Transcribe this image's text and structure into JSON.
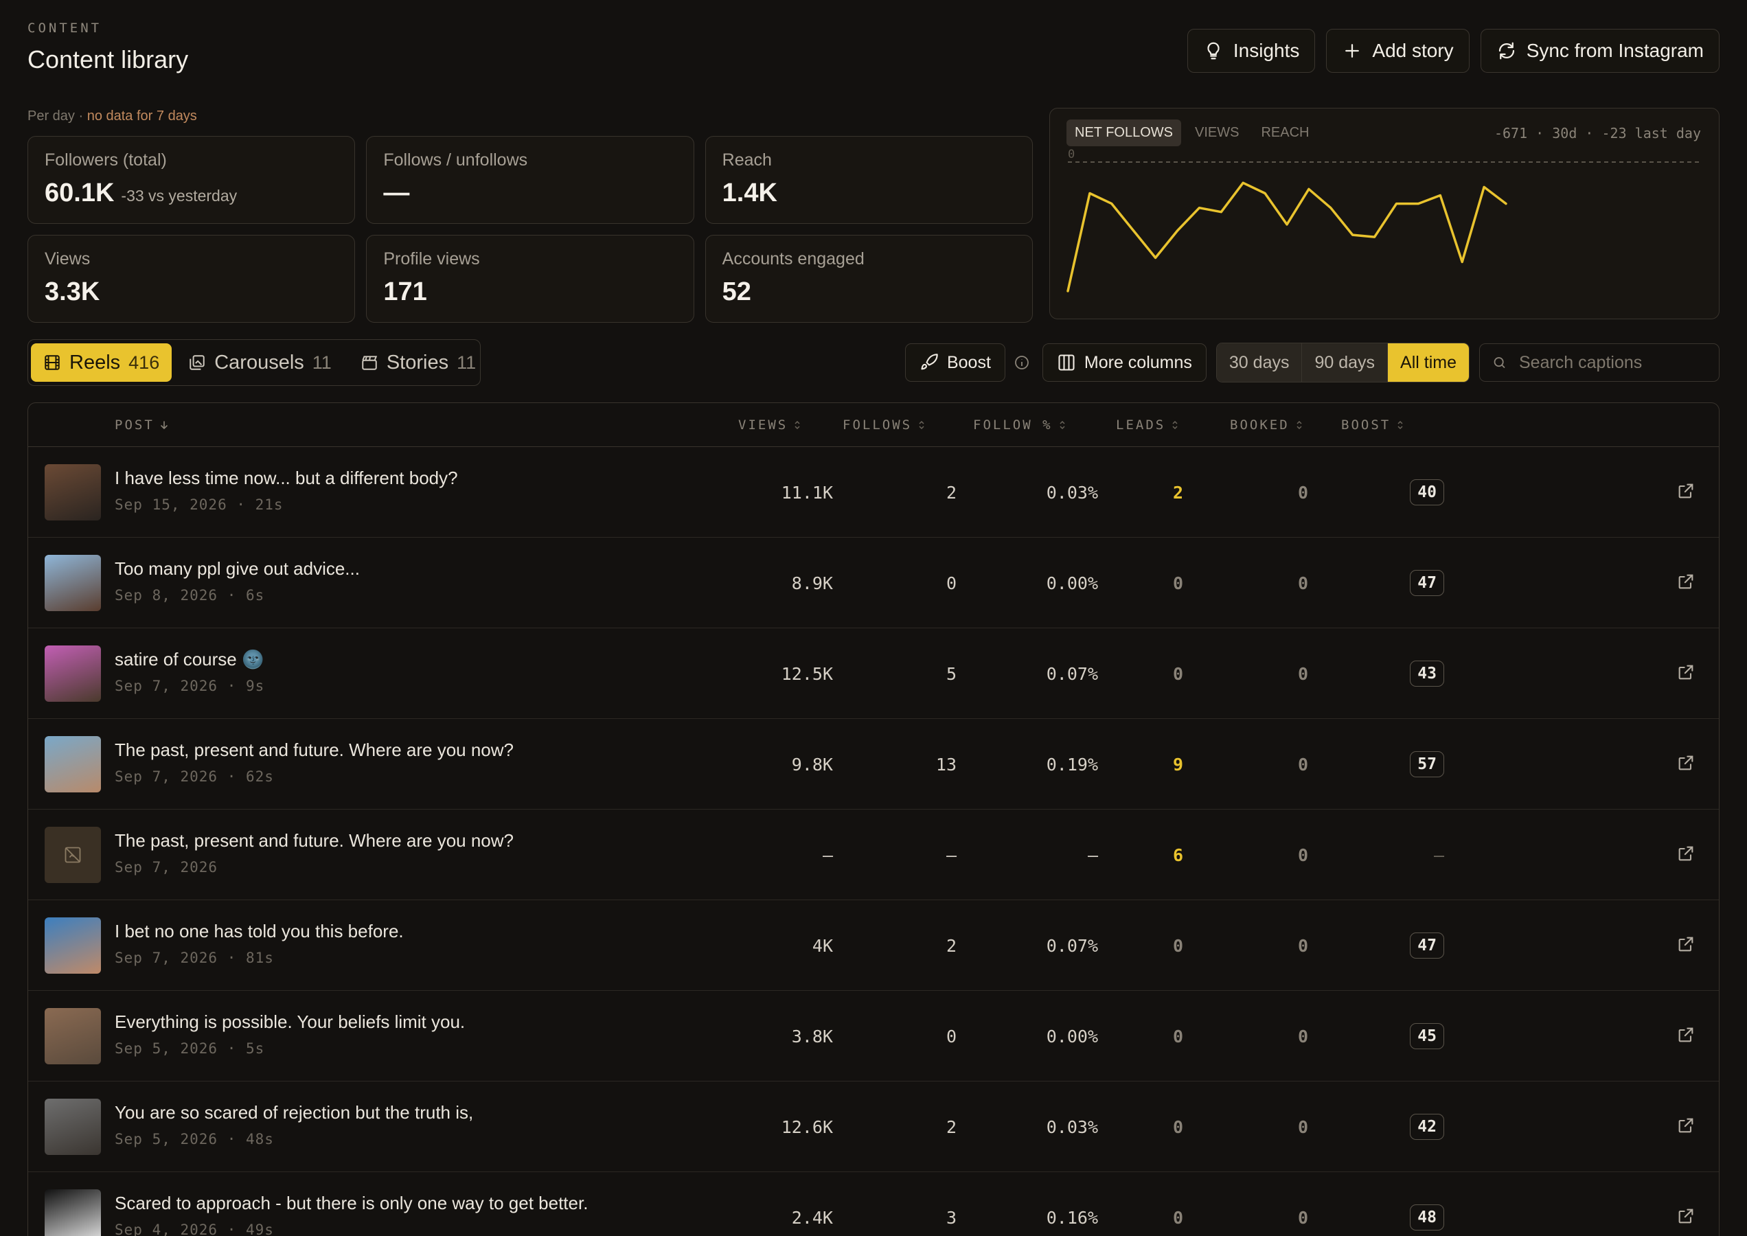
{
  "header": {
    "eyebrow": "CONTENT",
    "title": "Content library",
    "actions": {
      "insights": "Insights",
      "add_story": "Add story",
      "sync": "Sync from Instagram"
    }
  },
  "perday": {
    "label": "Per day · ",
    "warning": "no data for 7 days"
  },
  "kpis": {
    "followers": {
      "label": "Followers (total)",
      "value": "60.1K",
      "sub": "-33 vs yesterday"
    },
    "follows": {
      "label": "Follows / unfollows",
      "value": "—"
    },
    "reach": {
      "label": "Reach",
      "value": "1.4K"
    },
    "views": {
      "label": "Views",
      "value": "3.3K"
    },
    "profile_views": {
      "label": "Profile views",
      "value": "171"
    },
    "engaged": {
      "label": "Accounts engaged",
      "value": "52"
    }
  },
  "chart": {
    "tabs": [
      "NET FOLLOWS",
      "VIEWS",
      "REACH"
    ],
    "active_tab": "NET FOLLOWS",
    "summary": "-671 · 30d · -23 last day",
    "zero_label": "0"
  },
  "chart_data": {
    "type": "line",
    "series": [
      {
        "values": [
          -62,
          -15,
          -20,
          -33,
          -46,
          -33,
          -22,
          -24,
          -10,
          -15,
          -30,
          -13,
          -22,
          -35,
          -36,
          -20,
          -20,
          -16,
          -48,
          -12,
          -20
        ]
      }
    ],
    "reference_line": 0,
    "line_color": "#e9c32e"
  },
  "type_tabs": [
    {
      "label": "Reels",
      "count": "416",
      "active": true
    },
    {
      "label": "Carousels",
      "count": "11",
      "active": false
    },
    {
      "label": "Stories",
      "count": "11",
      "active": false
    }
  ],
  "toolbar": {
    "boost": "Boost",
    "more_columns": "More columns",
    "ranges": [
      "30 days",
      "90 days",
      "All time"
    ],
    "active_range": "All time",
    "search_placeholder": "Search captions"
  },
  "columns": {
    "post": "POST",
    "views": "VIEWS",
    "follows": "FOLLOWS",
    "follow_pct": "FOLLOW %",
    "leads": "LEADS",
    "booked": "BOOKED",
    "boost": "BOOST"
  },
  "rows": [
    {
      "caption": "I have less time now... but a different body?",
      "meta": "Sep 15, 2026 · 21s",
      "views": "11.1K",
      "follows": "2",
      "follow_pct": "0.03%",
      "leads": "2",
      "booked": "0",
      "boost": "40",
      "thumb": [
        "#6b4a35",
        "#2a2420"
      ]
    },
    {
      "caption": "Too many ppl give out advice...",
      "meta": "Sep 8, 2026 · 6s",
      "views": "8.9K",
      "follows": "0",
      "follow_pct": "0.00%",
      "leads": "0",
      "booked": "0",
      "boost": "47",
      "thumb": [
        "#8fb6d8",
        "#5a3d2e"
      ]
    },
    {
      "caption": "satire of course 🌚",
      "meta": "Sep 7, 2026 · 9s",
      "views": "12.5K",
      "follows": "5",
      "follow_pct": "0.07%",
      "leads": "0",
      "booked": "0",
      "boost": "43",
      "thumb": [
        "#c25fb4",
        "#4a3a2c"
      ]
    },
    {
      "caption": "The past, present and future. Where are you now?",
      "meta": "Sep 7, 2026 · 62s",
      "views": "9.8K",
      "follows": "13",
      "follow_pct": "0.19%",
      "leads": "9",
      "booked": "0",
      "boost": "57",
      "thumb": [
        "#7aa8c8",
        "#b88a6a"
      ]
    },
    {
      "caption": "The past, present and future. Where are you now?",
      "meta": "Sep 7, 2026",
      "views": "–",
      "follows": "–",
      "follow_pct": "–",
      "leads": "6",
      "booked": "0",
      "boost": "—",
      "thumb": null
    },
    {
      "caption": "I bet no one has told you this before.",
      "meta": "Sep 7, 2026 · 81s",
      "views": "4K",
      "follows": "2",
      "follow_pct": "0.07%",
      "leads": "0",
      "booked": "0",
      "boost": "47",
      "thumb": [
        "#3c7fbf",
        "#c08a68"
      ]
    },
    {
      "caption": "Everything is possible. Your beliefs limit you.",
      "meta": "Sep 5, 2026 · 5s",
      "views": "3.8K",
      "follows": "0",
      "follow_pct": "0.00%",
      "leads": "0",
      "booked": "0",
      "boost": "45",
      "thumb": [
        "#8a6a52",
        "#5a4a3c"
      ]
    },
    {
      "caption": "You are so scared of rejection but the truth is,",
      "meta": "Sep 5, 2026 · 48s",
      "views": "12.6K",
      "follows": "2",
      "follow_pct": "0.03%",
      "leads": "0",
      "booked": "0",
      "boost": "42",
      "thumb": [
        "#6e6e6e",
        "#3a3530"
      ]
    },
    {
      "caption": "Scared to approach - but there is only one way to get better.",
      "meta": "Sep 4, 2026 · 49s",
      "views": "2.4K",
      "follows": "3",
      "follow_pct": "0.16%",
      "leads": "0",
      "booked": "0",
      "boost": "48",
      "thumb": [
        "#111111",
        "#eeeeee"
      ]
    }
  ]
}
